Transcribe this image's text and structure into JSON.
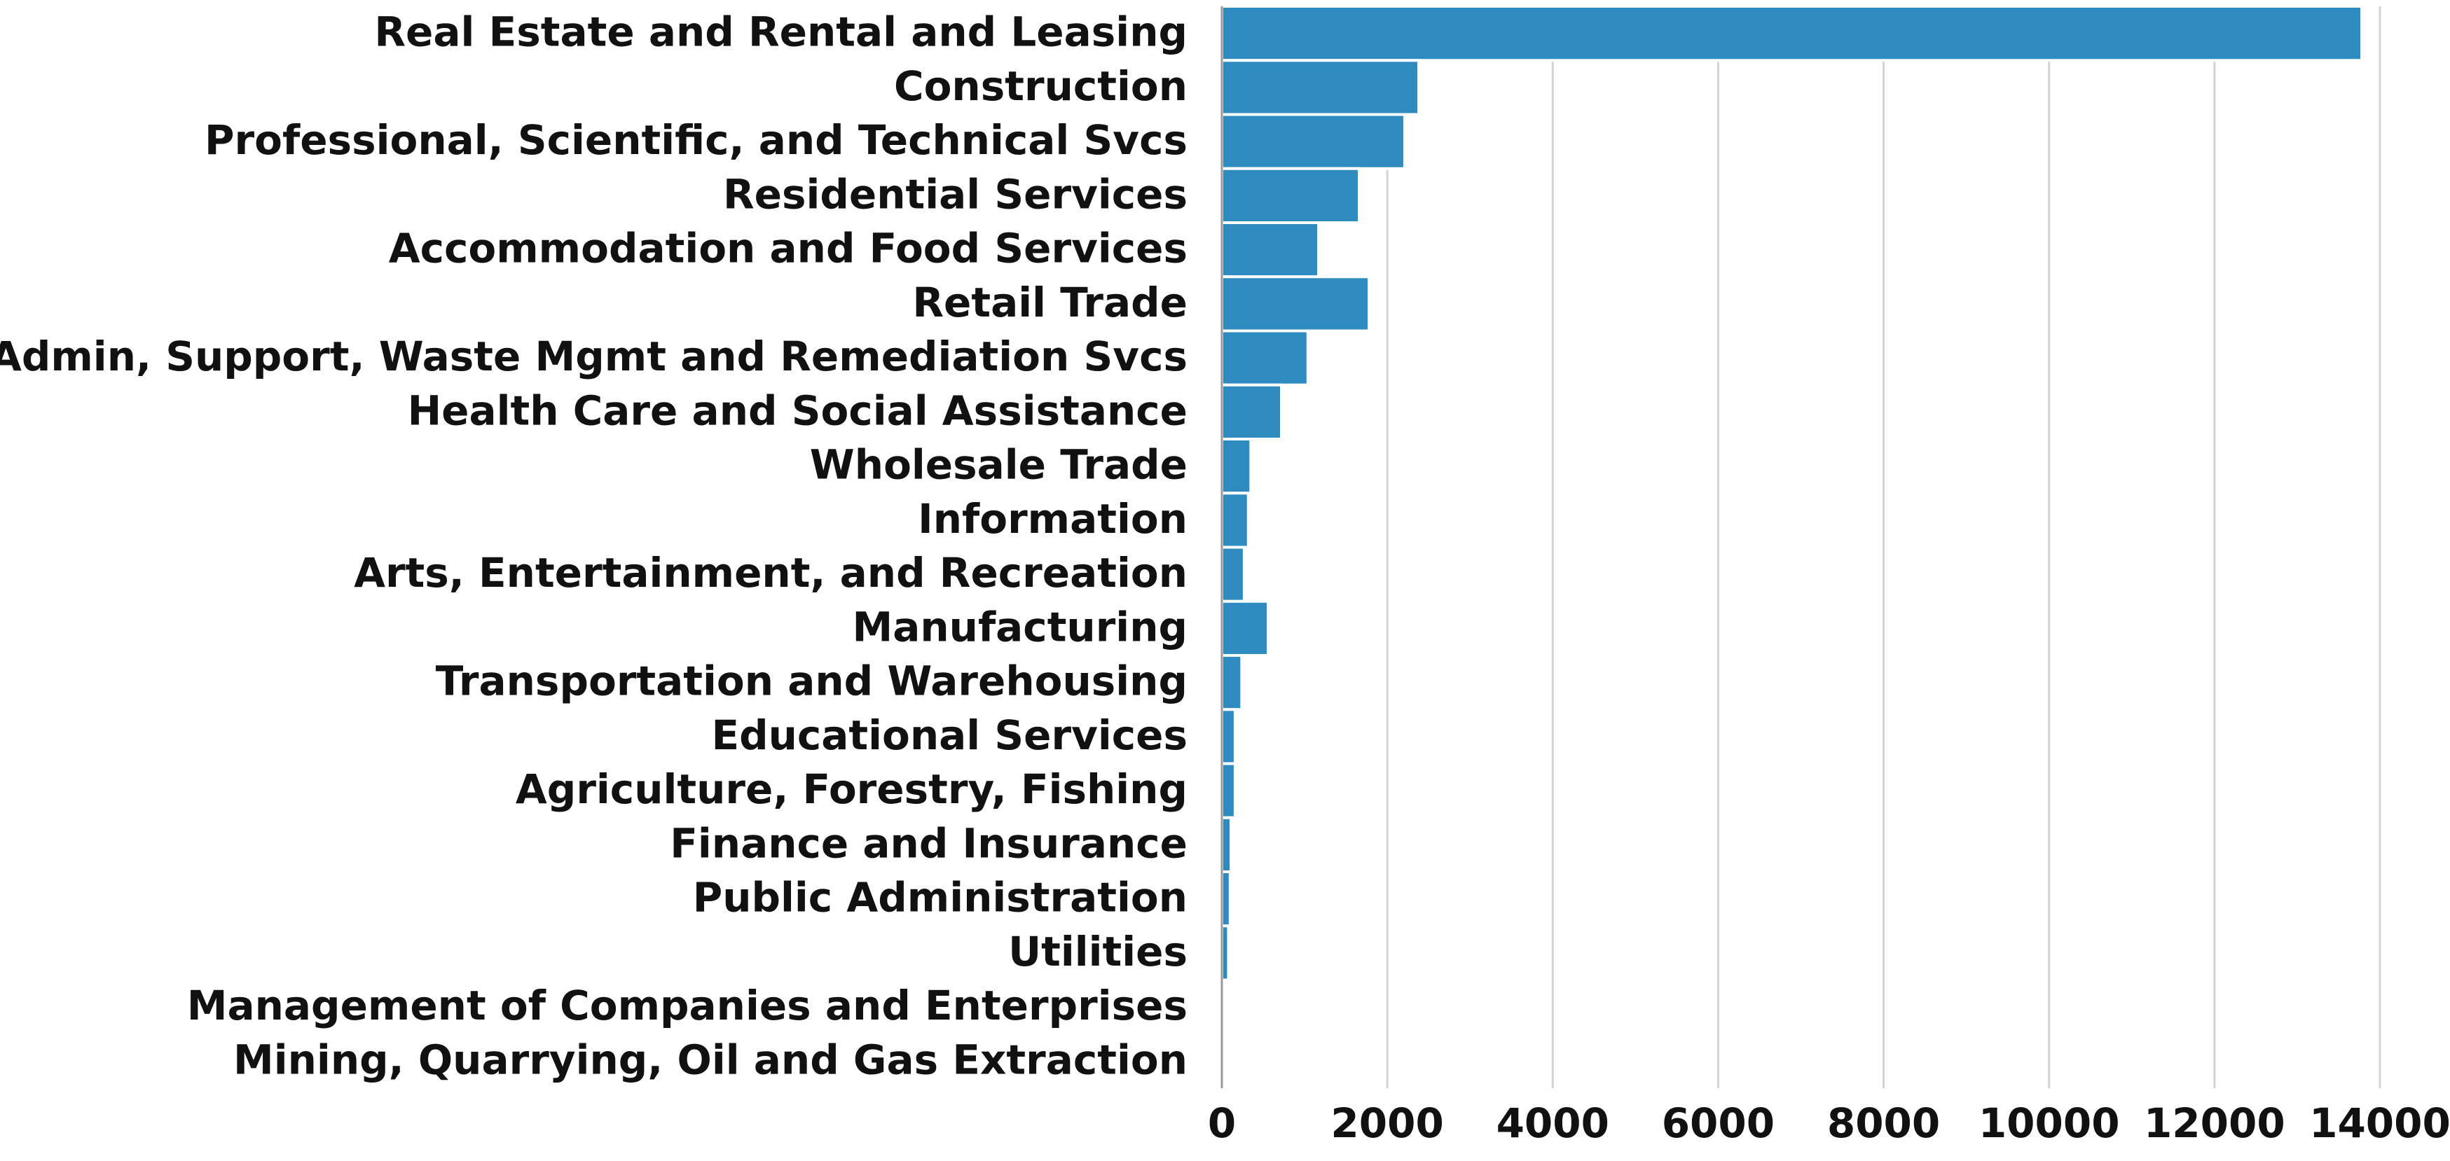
{
  "chart_data": {
    "type": "barh",
    "categories": [
      "Real Estate and Rental and Leasing",
      "Construction",
      "Professional, Scientific, and Technical Svcs",
      "Residential Services",
      "Accommodation and Food Services",
      "Retail Trade",
      "Admin, Support, Waste Mgmt and Remediation Svcs",
      "Health Care and Social Assistance",
      "Wholesale Trade",
      "Information",
      "Arts, Entertainment, and Recreation",
      "Manufacturing",
      "Transportation and Warehousing",
      "Educational Services",
      "Agriculture, Forestry, Fishing",
      "Finance and Insurance",
      "Public Administration",
      "Utilities",
      "Management of Companies and Enterprises",
      "Mining, Quarrying, Oil and Gas Extraction"
    ],
    "values": [
      13780,
      2380,
      2210,
      1660,
      1170,
      1780,
      1040,
      720,
      350,
      320,
      270,
      560,
      240,
      160,
      160,
      110,
      100,
      80,
      10,
      5
    ],
    "color": "#2e8bc0",
    "xlim": [
      0,
      14000
    ],
    "xticks": [
      0,
      2000,
      4000,
      6000,
      8000,
      10000,
      12000,
      14000
    ],
    "grid": true
  }
}
